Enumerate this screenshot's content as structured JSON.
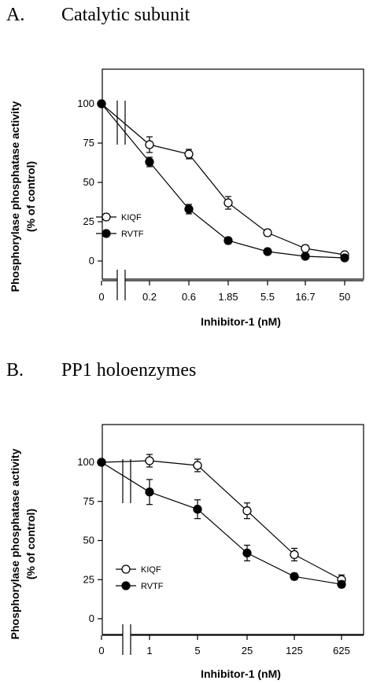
{
  "chart_data": [
    {
      "type": "line",
      "panel_label": "A.",
      "title": "Catalytic subunit",
      "xlabel": "Inhibitor-1  (nM)",
      "ylabel_line1": "Phosphorylase phosphatase activity",
      "ylabel_line2": "(% of control)",
      "ylim": [
        0,
        100
      ],
      "yticks": [
        "0",
        "25",
        "50",
        "75",
        "100"
      ],
      "ytick_values": [
        0,
        25,
        50,
        75,
        100
      ],
      "categories": [
        "0",
        "0.2",
        "0.6",
        "1.85",
        "5.5",
        "16.7",
        "50"
      ],
      "axis_break": true,
      "legend_position": "left",
      "series": [
        {
          "name": "KIQF",
          "marker": "open-circle",
          "values": [
            100,
            74,
            68,
            37,
            18,
            8,
            4
          ],
          "errors": [
            0,
            5,
            3,
            4,
            2,
            2,
            1
          ]
        },
        {
          "name": "RVTF",
          "marker": "filled-circle",
          "values": [
            100,
            63,
            33,
            13,
            6,
            3,
            2
          ],
          "errors": [
            0,
            3,
            3,
            2,
            1,
            1,
            1
          ]
        }
      ]
    },
    {
      "type": "line",
      "panel_label": "B.",
      "title": "PP1 holoenzymes",
      "xlabel": "Inhibitor-1  (nM)",
      "ylabel_line1": "Phosphorylase phosphatase activity",
      "ylabel_line2": "(% of control)",
      "ylim": [
        0,
        110
      ],
      "yticks": [
        "0",
        "25",
        "50",
        "75",
        "100"
      ],
      "ytick_values": [
        0,
        25,
        50,
        75,
        100
      ],
      "categories": [
        "0",
        "1",
        "5",
        "25",
        "125",
        "625"
      ],
      "axis_break": true,
      "legend_position": "left",
      "series": [
        {
          "name": "KIQF",
          "marker": "open-circle",
          "values": [
            100,
            101,
            98,
            69,
            41,
            25
          ],
          "errors": [
            0,
            4,
            4,
            5,
            4,
            3
          ]
        },
        {
          "name": "RVTF",
          "marker": "filled-circle",
          "values": [
            100,
            81,
            70,
            42,
            27,
            22
          ],
          "errors": [
            0,
            8,
            6,
            5,
            2,
            2
          ]
        }
      ]
    }
  ]
}
